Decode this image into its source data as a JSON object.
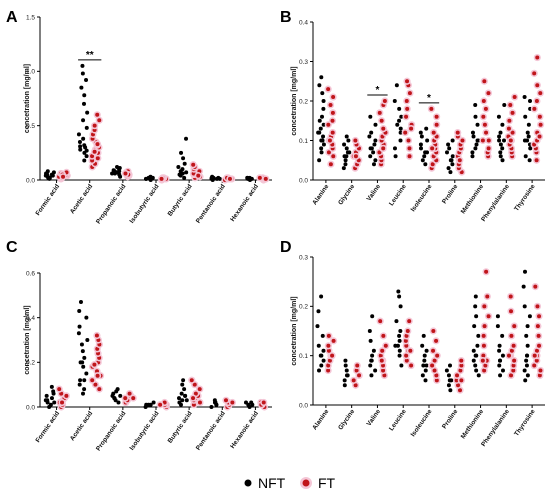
{
  "chart_data": [
    {
      "panel": "A",
      "type": "scatter",
      "ylabel": "concetration [mg/ml]",
      "ylim": [
        0,
        1.5
      ],
      "yticks": [
        "0.0",
        "0.5",
        "1.0",
        "1.5"
      ],
      "categories": [
        "Formic acid",
        "Acetic acid",
        "Propanoic acid",
        "Isobutyric acid",
        "Butyric acid",
        "Pentanoic acid",
        "Hexanoic acid"
      ],
      "series": [
        {
          "name": "NFT",
          "values": [
            [
              0.01,
              0.02,
              0.03,
              0.04,
              0.05,
              0.06,
              0.07,
              0.08,
              0.03,
              0.02,
              0.05,
              0.04
            ],
            [
              0.18,
              0.22,
              0.25,
              0.28,
              0.3,
              0.32,
              0.35,
              0.38,
              0.42,
              0.48,
              0.55,
              0.62,
              0.7,
              0.78,
              0.85,
              0.92,
              0.98,
              1.05,
              0.27,
              0.31
            ],
            [
              0.03,
              0.05,
              0.06,
              0.07,
              0.08,
              0.09,
              0.1,
              0.11,
              0.12,
              0.06,
              0.08
            ],
            [
              0.0,
              0.01,
              0.01,
              0.02,
              0.02,
              0.03,
              0.01,
              0.02
            ],
            [
              0.02,
              0.04,
              0.06,
              0.08,
              0.1,
              0.12,
              0.15,
              0.2,
              0.25,
              0.38,
              0.05,
              0.07
            ],
            [
              0.0,
              0.01,
              0.01,
              0.02,
              0.02,
              0.03,
              0.01,
              0.02
            ],
            [
              0.0,
              0.01,
              0.01,
              0.02,
              0.02,
              0.01,
              0.02
            ]
          ]
        },
        {
          "name": "FT",
          "values": [
            [
              0.01,
              0.02,
              0.03,
              0.04,
              0.05,
              0.06,
              0.07,
              0.05,
              0.03
            ],
            [
              0.12,
              0.15,
              0.18,
              0.2,
              0.22,
              0.25,
              0.28,
              0.3,
              0.32,
              0.35,
              0.38,
              0.42,
              0.46,
              0.5,
              0.55,
              0.6,
              0.26,
              0.33
            ],
            [
              0.03,
              0.04,
              0.05,
              0.06,
              0.07,
              0.08,
              0.05,
              0.06
            ],
            [
              0.0,
              0.01,
              0.01,
              0.02,
              0.02,
              0.01
            ],
            [
              0.02,
              0.03,
              0.05,
              0.06,
              0.08,
              0.1,
              0.12,
              0.14,
              0.04
            ],
            [
              0.0,
              0.01,
              0.01,
              0.02,
              0.02,
              0.01
            ],
            [
              0.0,
              0.01,
              0.01,
              0.02,
              0.01,
              0.02
            ]
          ]
        }
      ],
      "annotations": [
        {
          "category": "Acetic acid",
          "text": "**"
        }
      ]
    },
    {
      "panel": "B",
      "type": "scatter",
      "ylabel": "concetration [mg/ml]",
      "ylim": [
        0,
        0.4
      ],
      "yticks": [
        "0.0",
        "0.1",
        "0.2",
        "0.3",
        "0.4"
      ],
      "categories": [
        "Alanine",
        "Glycine",
        "Valine",
        "Leucine",
        "Isoleucine",
        "Proline",
        "Methionine",
        "Phenylalanine",
        "Thyrosine"
      ],
      "series": [
        {
          "name": "NFT",
          "values": [
            [
              0.05,
              0.07,
              0.08,
              0.09,
              0.1,
              0.11,
              0.12,
              0.13,
              0.14,
              0.15,
              0.16,
              0.18,
              0.2,
              0.22,
              0.24,
              0.26,
              0.1,
              0.12
            ],
            [
              0.03,
              0.04,
              0.05,
              0.06,
              0.07,
              0.08,
              0.09,
              0.1,
              0.11,
              0.06,
              0.07
            ],
            [
              0.04,
              0.05,
              0.06,
              0.07,
              0.08,
              0.09,
              0.1,
              0.11,
              0.12,
              0.14,
              0.16,
              0.08
            ],
            [
              0.06,
              0.08,
              0.1,
              0.12,
              0.14,
              0.15,
              0.16,
              0.18,
              0.2,
              0.24,
              0.13
            ],
            [
              0.04,
              0.05,
              0.06,
              0.07,
              0.08,
              0.09,
              0.1,
              0.11,
              0.12,
              0.13,
              0.07
            ],
            [
              0.02,
              0.03,
              0.04,
              0.05,
              0.06,
              0.07,
              0.08,
              0.09,
              0.1,
              0.05
            ],
            [
              0.06,
              0.07,
              0.08,
              0.09,
              0.1,
              0.11,
              0.12,
              0.14,
              0.16,
              0.19,
              0.1
            ],
            [
              0.05,
              0.06,
              0.07,
              0.08,
              0.09,
              0.1,
              0.11,
              0.12,
              0.14,
              0.16,
              0.19,
              0.1
            ],
            [
              0.05,
              0.06,
              0.08,
              0.09,
              0.1,
              0.11,
              0.12,
              0.14,
              0.16,
              0.18,
              0.2,
              0.21,
              0.1
            ]
          ]
        },
        {
          "name": "FT",
          "values": [
            [
              0.04,
              0.06,
              0.07,
              0.08,
              0.09,
              0.1,
              0.11,
              0.12,
              0.14,
              0.15,
              0.17,
              0.19,
              0.21,
              0.23,
              0.1
            ],
            [
              0.03,
              0.04,
              0.05,
              0.06,
              0.07,
              0.08,
              0.09,
              0.1,
              0.06
            ],
            [
              0.04,
              0.05,
              0.06,
              0.07,
              0.08,
              0.09,
              0.1,
              0.11,
              0.12,
              0.13,
              0.15,
              0.17,
              0.19,
              0.2,
              0.08
            ],
            [
              0.06,
              0.08,
              0.1,
              0.12,
              0.14,
              0.16,
              0.18,
              0.2,
              0.22,
              0.24,
              0.25,
              0.13
            ],
            [
              0.03,
              0.04,
              0.05,
              0.06,
              0.07,
              0.08,
              0.09,
              0.1,
              0.11,
              0.12,
              0.14,
              0.16,
              0.18,
              0.08
            ],
            [
              0.02,
              0.03,
              0.04,
              0.05,
              0.06,
              0.07,
              0.08,
              0.09,
              0.1,
              0.11,
              0.12,
              0.05
            ],
            [
              0.06,
              0.07,
              0.08,
              0.1,
              0.12,
              0.14,
              0.16,
              0.18,
              0.2,
              0.22,
              0.25,
              0.1
            ],
            [
              0.06,
              0.07,
              0.08,
              0.09,
              0.1,
              0.11,
              0.12,
              0.13,
              0.15,
              0.17,
              0.19,
              0.21,
              0.1
            ],
            [
              0.05,
              0.07,
              0.08,
              0.09,
              0.1,
              0.12,
              0.14,
              0.16,
              0.18,
              0.2,
              0.22,
              0.24,
              0.27,
              0.31,
              0.11
            ]
          ]
        }
      ],
      "annotations": [
        {
          "category": "Valine",
          "text": "*"
        },
        {
          "category": "Isoleucine",
          "text": "*"
        }
      ]
    },
    {
      "panel": "C",
      "type": "scatter",
      "ylabel": "concetration [mg/ml]",
      "ylim": [
        0,
        0.6
      ],
      "yticks": [
        "0.0",
        "0.2",
        "0.4",
        "0.6"
      ],
      "categories": [
        "Formic acid",
        "Acetic acid",
        "Propanoic acid",
        "Isobutyric acid",
        "Butyric acid",
        "Pentanoic acid",
        "Hexanoic acid"
      ],
      "series": [
        {
          "name": "NFT",
          "values": [
            [
              0.0,
              0.01,
              0.02,
              0.03,
              0.04,
              0.05,
              0.06,
              0.07,
              0.09,
              0.03,
              0.02
            ],
            [
              0.06,
              0.08,
              0.1,
              0.12,
              0.15,
              0.18,
              0.2,
              0.22,
              0.25,
              0.28,
              0.3,
              0.33,
              0.36,
              0.4,
              0.43,
              0.47,
              0.12,
              0.2
            ],
            [
              0.02,
              0.03,
              0.04,
              0.05,
              0.06,
              0.07,
              0.08,
              0.04,
              0.05
            ],
            [
              0.0,
              0.01,
              0.01,
              0.02,
              0.01
            ],
            [
              0.01,
              0.02,
              0.03,
              0.04,
              0.05,
              0.06,
              0.08,
              0.1,
              0.12,
              0.05,
              0.03
            ],
            [
              0.0,
              0.01,
              0.02,
              0.03,
              0.02,
              0.01
            ],
            [
              0.0,
              0.01,
              0.02,
              0.01,
              0.02
            ]
          ]
        },
        {
          "name": "FT",
          "values": [
            [
              0.0,
              0.01,
              0.02,
              0.03,
              0.04,
              0.05,
              0.06,
              0.08,
              0.02
            ],
            [
              0.08,
              0.1,
              0.12,
              0.14,
              0.16,
              0.18,
              0.2,
              0.22,
              0.24,
              0.26,
              0.28,
              0.3,
              0.32,
              0.14,
              0.19
            ],
            [
              0.02,
              0.03,
              0.04,
              0.05,
              0.06,
              0.04
            ],
            [
              0.0,
              0.01,
              0.01,
              0.02,
              0.01
            ],
            [
              0.01,
              0.02,
              0.03,
              0.04,
              0.05,
              0.06,
              0.08,
              0.1,
              0.12,
              0.04
            ],
            [
              0.0,
              0.01,
              0.02,
              0.03,
              0.02
            ],
            [
              0.0,
              0.01,
              0.02,
              0.01,
              0.02
            ]
          ]
        }
      ]
    },
    {
      "panel": "D",
      "type": "scatter",
      "ylabel": "concetration [mg/ml]",
      "ylim": [
        0,
        0.3
      ],
      "yticks": [
        "0.0",
        "0.1",
        "0.2",
        "0.3"
      ],
      "categories": [
        "Alanine",
        "Glycine",
        "Valine",
        "Leucine",
        "Isoleucine",
        "Proline",
        "Methionine",
        "Phenylalanine",
        "Thyrosine"
      ],
      "series": [
        {
          "name": "NFT",
          "values": [
            [
              0.07,
              0.08,
              0.09,
              0.1,
              0.11,
              0.12,
              0.14,
              0.16,
              0.19,
              0.22,
              0.1
            ],
            [
              0.04,
              0.05,
              0.06,
              0.07,
              0.08,
              0.09,
              0.06
            ],
            [
              0.06,
              0.07,
              0.08,
              0.09,
              0.1,
              0.11,
              0.13,
              0.15,
              0.18,
              0.09
            ],
            [
              0.08,
              0.1,
              0.11,
              0.12,
              0.13,
              0.14,
              0.15,
              0.17,
              0.2,
              0.22,
              0.23,
              0.12
            ],
            [
              0.05,
              0.06,
              0.07,
              0.08,
              0.09,
              0.1,
              0.11,
              0.12,
              0.14,
              0.08
            ],
            [
              0.03,
              0.04,
              0.05,
              0.06,
              0.07,
              0.08,
              0.05
            ],
            [
              0.06,
              0.07,
              0.08,
              0.09,
              0.1,
              0.11,
              0.12,
              0.14,
              0.16,
              0.18,
              0.2,
              0.22,
              0.1
            ],
            [
              0.06,
              0.07,
              0.08,
              0.09,
              0.1,
              0.11,
              0.12,
              0.14,
              0.16,
              0.18,
              0.09
            ],
            [
              0.05,
              0.06,
              0.07,
              0.08,
              0.09,
              0.1,
              0.12,
              0.14,
              0.16,
              0.18,
              0.2,
              0.24,
              0.27,
              0.1
            ]
          ]
        },
        {
          "name": "FT",
          "values": [
            [
              0.07,
              0.08,
              0.09,
              0.1,
              0.11,
              0.12,
              0.13,
              0.14,
              0.1
            ],
            [
              0.04,
              0.05,
              0.06,
              0.07,
              0.08,
              0.06
            ],
            [
              0.06,
              0.07,
              0.08,
              0.09,
              0.1,
              0.11,
              0.12,
              0.14,
              0.17,
              0.09
            ],
            [
              0.08,
              0.09,
              0.1,
              0.11,
              0.12,
              0.13,
              0.14,
              0.15,
              0.17,
              0.11
            ],
            [
              0.05,
              0.06,
              0.07,
              0.08,
              0.09,
              0.1,
              0.11,
              0.13,
              0.15,
              0.08
            ],
            [
              0.03,
              0.04,
              0.05,
              0.06,
              0.07,
              0.08,
              0.09,
              0.05
            ],
            [
              0.07,
              0.08,
              0.09,
              0.1,
              0.12,
              0.14,
              0.16,
              0.18,
              0.2,
              0.22,
              0.27,
              0.09
            ],
            [
              0.06,
              0.07,
              0.08,
              0.09,
              0.1,
              0.11,
              0.12,
              0.14,
              0.16,
              0.19,
              0.22,
              0.1
            ],
            [
              0.06,
              0.07,
              0.08,
              0.09,
              0.1,
              0.11,
              0.12,
              0.14,
              0.16,
              0.18,
              0.2,
              0.24,
              0.1
            ]
          ]
        }
      ]
    }
  ],
  "legend": {
    "items": [
      {
        "label": "NFT"
      },
      {
        "label": "FT"
      }
    ],
    "placement": "bottom"
  },
  "colors": {
    "nft": "#000000",
    "ft": "#c0151a",
    "ft_halo": "#f4c6d6"
  }
}
